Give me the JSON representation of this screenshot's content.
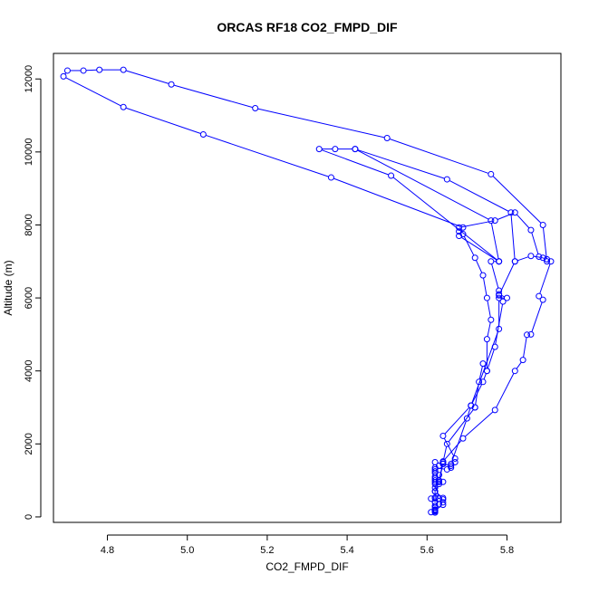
{
  "chart_data": {
    "type": "line",
    "title": "ORCAS RF18 CO2_FMPD_DIF",
    "xlabel": "CO2_FMPD_DIF",
    "ylabel": "Altitude (m)",
    "xlim": [
      4.665,
      5.935
    ],
    "ylim": [
      -150,
      12700
    ],
    "x_ticks": [
      4.8,
      5.0,
      5.2,
      5.4,
      5.6,
      5.8
    ],
    "x_tick_labels": [
      "4.8",
      "5.0",
      "5.2",
      "5.4",
      "5.6",
      "5.8"
    ],
    "y_ticks": [
      0,
      2000,
      4000,
      6000,
      8000,
      10000,
      12000
    ],
    "y_tick_labels": [
      "0",
      "2000",
      "4000",
      "6000",
      "8000",
      "10000",
      "12000"
    ],
    "grid": false,
    "legend": "none",
    "series": [
      {
        "color": "#0000ff",
        "marker": "open-circle",
        "points": [
          [
            5.61,
            130
          ],
          [
            5.62,
            160
          ],
          [
            5.62,
            200
          ],
          [
            5.62,
            300
          ],
          [
            5.63,
            350
          ],
          [
            5.62,
            500
          ],
          [
            5.64,
            520
          ],
          [
            5.62,
            700
          ],
          [
            5.63,
            900
          ],
          [
            5.64,
            960
          ],
          [
            5.62,
            1000
          ],
          [
            5.62,
            1100
          ],
          [
            5.62,
            1200
          ],
          [
            5.62,
            1300
          ],
          [
            5.63,
            1400
          ],
          [
            5.62,
            1500
          ],
          [
            5.64,
            1450
          ],
          [
            5.66,
            1400
          ],
          [
            5.66,
            1350
          ],
          [
            5.67,
            1500
          ],
          [
            5.67,
            1600
          ],
          [
            5.64,
            2220
          ],
          [
            5.71,
            3050
          ],
          [
            5.72,
            3000
          ],
          [
            5.73,
            3700
          ],
          [
            5.74,
            4200
          ],
          [
            5.75,
            4000
          ],
          [
            5.75,
            4870
          ],
          [
            5.76,
            5400
          ],
          [
            5.75,
            6000
          ],
          [
            5.74,
            6620
          ],
          [
            5.72,
            7100
          ],
          [
            5.69,
            7750
          ],
          [
            5.68,
            7820
          ],
          [
            5.68,
            7930
          ],
          [
            5.77,
            8120
          ],
          [
            5.82,
            8340
          ],
          [
            5.86,
            7860
          ],
          [
            5.88,
            7130
          ],
          [
            5.9,
            7060
          ],
          [
            5.91,
            7000
          ],
          [
            5.88,
            6050
          ],
          [
            5.89,
            5950
          ],
          [
            5.86,
            5000
          ],
          [
            5.85,
            4990
          ],
          [
            5.84,
            4300
          ],
          [
            5.82,
            4000
          ],
          [
            5.77,
            2930
          ],
          [
            5.69,
            2150
          ],
          [
            5.64,
            1520
          ],
          [
            5.64,
            1460
          ],
          [
            5.63,
            960
          ],
          [
            5.62,
            900
          ],
          [
            5.63,
            500
          ],
          [
            5.64,
            480
          ],
          [
            5.64,
            400
          ],
          [
            5.64,
            330
          ],
          [
            5.62,
            180
          ]
        ]
      },
      {
        "color": "#0000ff",
        "marker": "open-circle",
        "points": [
          [
            5.62,
            120
          ],
          [
            5.62,
            200
          ],
          [
            5.62,
            300
          ],
          [
            5.62,
            400
          ],
          [
            5.61,
            500
          ],
          [
            5.62,
            530
          ],
          [
            5.62,
            800
          ],
          [
            5.63,
            950
          ],
          [
            5.62,
            1050
          ],
          [
            5.63,
            1150
          ],
          [
            5.62,
            1250
          ],
          [
            5.62,
            1350
          ],
          [
            5.65,
            1300
          ],
          [
            5.66,
            1450
          ],
          [
            5.7,
            2700
          ],
          [
            5.71,
            3050
          ],
          [
            5.78,
            5150
          ],
          [
            5.78,
            6000
          ],
          [
            5.8,
            6000
          ],
          [
            5.78,
            6100
          ],
          [
            5.78,
            6200
          ],
          [
            5.76,
            7000
          ],
          [
            5.78,
            7000
          ],
          [
            5.68,
            7700
          ],
          [
            5.69,
            7930
          ],
          [
            5.36,
            9300
          ],
          [
            5.04,
            10480
          ],
          [
            4.84,
            11230
          ],
          [
            4.69,
            12070
          ],
          [
            4.7,
            12230
          ],
          [
            4.74,
            12230
          ],
          [
            4.78,
            12250
          ],
          [
            4.84,
            12250
          ],
          [
            4.96,
            11850
          ],
          [
            5.17,
            11200
          ],
          [
            5.5,
            10380
          ],
          [
            5.76,
            9390
          ],
          [
            5.89,
            8000
          ],
          [
            5.9,
            7000
          ],
          [
            5.89,
            7100
          ],
          [
            5.86,
            7150
          ],
          [
            5.82,
            7000
          ],
          [
            5.78,
            6070
          ],
          [
            5.79,
            5900
          ],
          [
            5.77,
            4660
          ],
          [
            5.75,
            4000
          ],
          [
            5.74,
            3700
          ],
          [
            5.71,
            3050
          ],
          [
            5.72,
            3000
          ],
          [
            5.65,
            2000
          ],
          [
            5.64,
            1500
          ],
          [
            5.63,
            1000
          ],
          [
            5.62,
            950
          ],
          [
            5.62,
            700
          ],
          [
            5.62,
            400
          ],
          [
            5.62,
            250
          ],
          [
            5.62,
            150
          ]
        ]
      },
      {
        "color": "#0000ff",
        "marker": "open-circle",
        "points": [
          [
            5.78,
            7000
          ],
          [
            5.76,
            8120
          ],
          [
            5.42,
            10080
          ],
          [
            5.37,
            10080
          ],
          [
            5.33,
            10080
          ],
          [
            5.51,
            9350
          ],
          [
            5.78,
            7000
          ]
        ]
      },
      {
        "color": "#0000ff",
        "marker": "open-circle",
        "points": [
          [
            5.82,
            7000
          ],
          [
            5.81,
            8340
          ],
          [
            5.65,
            9250
          ],
          [
            5.42,
            10080
          ]
        ]
      }
    ]
  }
}
